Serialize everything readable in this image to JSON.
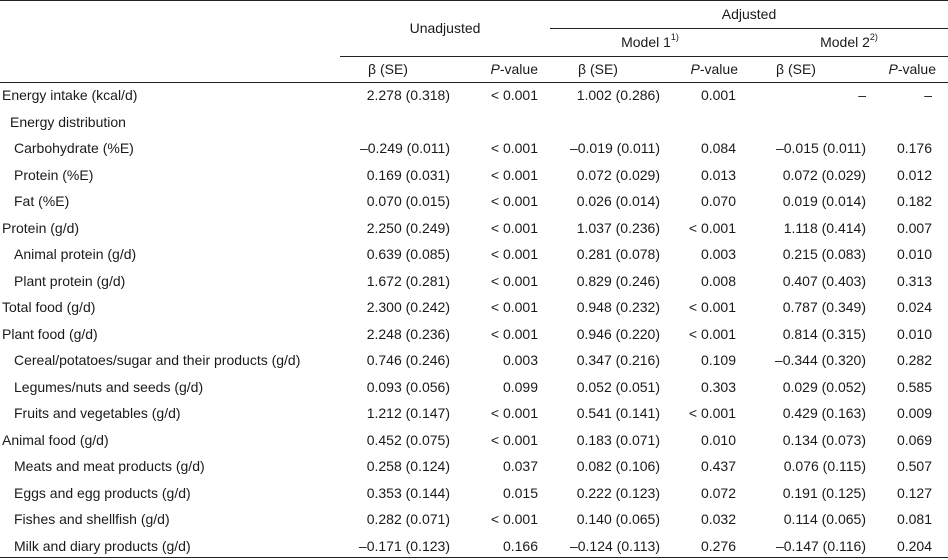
{
  "header": {
    "unadjusted": "Unadjusted",
    "adjusted": "Adjusted",
    "model1": "Model 1",
    "model1_sup": "1)",
    "model2": "Model 2",
    "model2_sup": "2)",
    "beta": "β (SE)",
    "p_italic": "P",
    "p_rest": "-value"
  },
  "rows": [
    {
      "label": "Energy intake (kcal/d)",
      "indent": 0,
      "u_b": "2.278 (0.318)",
      "u_p": "< 0.001",
      "m1_b": "1.002 (0.286)",
      "m1_p": "0.001",
      "m2_b": "–",
      "m2_p": "–"
    },
    {
      "label": "Energy distribution",
      "indent": 1,
      "u_b": "",
      "u_p": "",
      "m1_b": "",
      "m1_p": "",
      "m2_b": "",
      "m2_p": ""
    },
    {
      "label": "Carbohydrate (%E)",
      "indent": 2,
      "u_b": "–0.249 (0.011)",
      "u_p": "< 0.001",
      "m1_b": "–0.019 (0.011)",
      "m1_p": "0.084",
      "m2_b": "–0.015 (0.011)",
      "m2_p": "0.176"
    },
    {
      "label": "Protein (%E)",
      "indent": 2,
      "u_b": "0.169 (0.031)",
      "u_p": "< 0.001",
      "m1_b": "0.072 (0.029)",
      "m1_p": "0.013",
      "m2_b": "0.072 (0.029)",
      "m2_p": "0.012"
    },
    {
      "label": "Fat (%E)",
      "indent": 2,
      "u_b": "0.070 (0.015)",
      "u_p": "< 0.001",
      "m1_b": "0.026 (0.014)",
      "m1_p": "0.070",
      "m2_b": "0.019 (0.014)",
      "m2_p": "0.182"
    },
    {
      "label": "Protein (g/d)",
      "indent": 0,
      "u_b": "2.250 (0.249)",
      "u_p": "< 0.001",
      "m1_b": "1.037 (0.236)",
      "m1_p": "< 0.001",
      "m2_b": "1.118 (0.414)",
      "m2_p": "0.007"
    },
    {
      "label": "Animal protein (g/d)",
      "indent": 2,
      "u_b": "0.639 (0.085)",
      "u_p": "< 0.001",
      "m1_b": "0.281 (0.078)",
      "m1_p": "0.003",
      "m2_b": "0.215 (0.083)",
      "m2_p": "0.010"
    },
    {
      "label": "Plant protein (g/d)",
      "indent": 2,
      "u_b": "1.672 (0.281)",
      "u_p": "< 0.001",
      "m1_b": "0.829 (0.246)",
      "m1_p": "0.008",
      "m2_b": "0.407 (0.403)",
      "m2_p": "0.313"
    },
    {
      "label": "Total food (g/d)",
      "indent": 0,
      "u_b": "2.300 (0.242)",
      "u_p": "< 0.001",
      "m1_b": "0.948 (0.232)",
      "m1_p": "< 0.001",
      "m2_b": "0.787 (0.349)",
      "m2_p": "0.024"
    },
    {
      "label": "Plant food (g/d)",
      "indent": 0,
      "u_b": "2.248 (0.236)",
      "u_p": "< 0.001",
      "m1_b": "0.946 (0.220)",
      "m1_p": "< 0.001",
      "m2_b": "0.814 (0.315)",
      "m2_p": "0.010"
    },
    {
      "label": "Cereal/potatoes/sugar and their products (g/d)",
      "indent": 2,
      "u_b": "0.746 (0.246)",
      "u_p": "0.003",
      "m1_b": "0.347 (0.216)",
      "m1_p": "0.109",
      "m2_b": "–0.344 (0.320)",
      "m2_p": "0.282"
    },
    {
      "label": "Legumes/nuts and seeds (g/d)",
      "indent": 2,
      "u_b": "0.093 (0.056)",
      "u_p": "0.099",
      "m1_b": "0.052 (0.051)",
      "m1_p": "0.303",
      "m2_b": "0.029 (0.052)",
      "m2_p": "0.585"
    },
    {
      "label": "Fruits and vegetables (g/d)",
      "indent": 2,
      "u_b": "1.212 (0.147)",
      "u_p": "< 0.001",
      "m1_b": "0.541 (0.141)",
      "m1_p": "< 0.001",
      "m2_b": "0.429 (0.163)",
      "m2_p": "0.009"
    },
    {
      "label": "Animal food (g/d)",
      "indent": 0,
      "u_b": "0.452 (0.075)",
      "u_p": "< 0.001",
      "m1_b": "0.183 (0.071)",
      "m1_p": "0.010",
      "m2_b": "0.134 (0.073)",
      "m2_p": "0.069"
    },
    {
      "label": "Meats and meat products (g/d)",
      "indent": 2,
      "u_b": "0.258 (0.124)",
      "u_p": "0.037",
      "m1_b": "0.082 (0.106)",
      "m1_p": "0.437",
      "m2_b": "0.076 (0.115)",
      "m2_p": "0.507"
    },
    {
      "label": "Eggs and egg products (g/d)",
      "indent": 2,
      "u_b": "0.353 (0.144)",
      "u_p": "0.015",
      "m1_b": "0.222 (0.123)",
      "m1_p": "0.072",
      "m2_b": "0.191 (0.125)",
      "m2_p": "0.127"
    },
    {
      "label": "Fishes and shellfish (g/d)",
      "indent": 2,
      "u_b": "0.282 (0.071)",
      "u_p": "< 0.001",
      "m1_b": "0.140 (0.065)",
      "m1_p": "0.032",
      "m2_b": "0.114 (0.065)",
      "m2_p": "0.081"
    },
    {
      "label": "Milk and diary products (g/d)",
      "indent": 2,
      "u_b": "–0.171 (0.123)",
      "u_p": "0.166",
      "m1_b": "–0.124 (0.113)",
      "m1_p": "0.276",
      "m2_b": "–0.147 (0.116)",
      "m2_p": "0.204"
    }
  ]
}
